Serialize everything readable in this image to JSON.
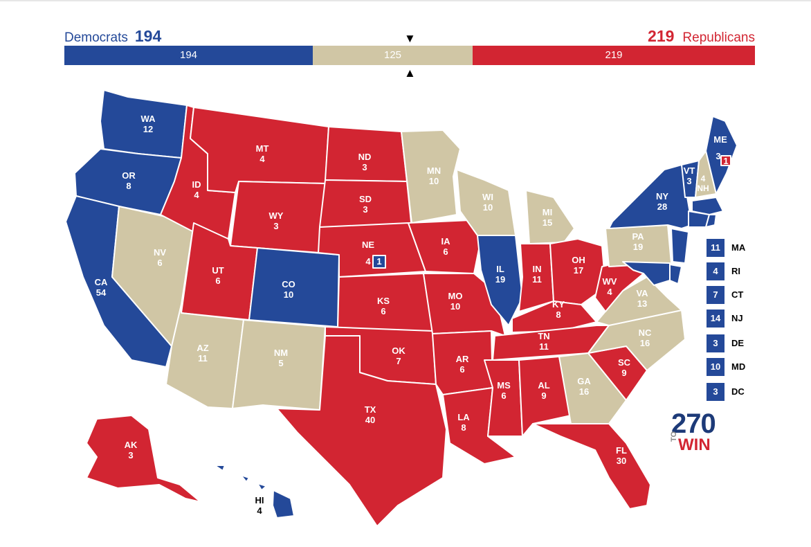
{
  "header": {
    "dem_name": "Democrats",
    "dem_total": "194",
    "rep_total": "219",
    "rep_name": "Republicans",
    "bar_dem": "194",
    "bar_tossup": "125",
    "bar_rep": "219",
    "arrow_top": "▼",
    "arrow_bottom": "▲"
  },
  "colors": {
    "dem": "#244999",
    "rep": "#d22532",
    "tossup": "#d0c6a5"
  },
  "states": {
    "WA": {
      "code": "WA",
      "ev": "12",
      "party": "dem"
    },
    "OR": {
      "code": "OR",
      "ev": "8",
      "party": "dem"
    },
    "CA": {
      "code": "CA",
      "ev": "54",
      "party": "dem"
    },
    "NV": {
      "code": "NV",
      "ev": "6",
      "party": "tossup"
    },
    "ID": {
      "code": "ID",
      "ev": "4",
      "party": "rep"
    },
    "MT": {
      "code": "MT",
      "ev": "4",
      "party": "rep"
    },
    "WY": {
      "code": "WY",
      "ev": "3",
      "party": "rep"
    },
    "UT": {
      "code": "UT",
      "ev": "6",
      "party": "rep"
    },
    "AZ": {
      "code": "AZ",
      "ev": "11",
      "party": "tossup"
    },
    "CO": {
      "code": "CO",
      "ev": "10",
      "party": "dem"
    },
    "NM": {
      "code": "NM",
      "ev": "5",
      "party": "tossup"
    },
    "ND": {
      "code": "ND",
      "ev": "3",
      "party": "rep"
    },
    "SD": {
      "code": "SD",
      "ev": "3",
      "party": "rep"
    },
    "NE": {
      "code": "NE",
      "ev": "4",
      "party": "rep",
      "split_ev": "1"
    },
    "KS": {
      "code": "KS",
      "ev": "6",
      "party": "rep"
    },
    "OK": {
      "code": "OK",
      "ev": "7",
      "party": "rep"
    },
    "TX": {
      "code": "TX",
      "ev": "40",
      "party": "rep"
    },
    "MN": {
      "code": "MN",
      "ev": "10",
      "party": "tossup"
    },
    "IA": {
      "code": "IA",
      "ev": "6",
      "party": "rep"
    },
    "MO": {
      "code": "MO",
      "ev": "10",
      "party": "rep"
    },
    "AR": {
      "code": "AR",
      "ev": "6",
      "party": "rep"
    },
    "LA": {
      "code": "LA",
      "ev": "8",
      "party": "rep"
    },
    "WI": {
      "code": "WI",
      "ev": "10",
      "party": "tossup"
    },
    "IL": {
      "code": "IL",
      "ev": "19",
      "party": "dem"
    },
    "MI": {
      "code": "MI",
      "ev": "15",
      "party": "tossup"
    },
    "IN": {
      "code": "IN",
      "ev": "11",
      "party": "rep"
    },
    "OH": {
      "code": "OH",
      "ev": "17",
      "party": "rep"
    },
    "KY": {
      "code": "KY",
      "ev": "8",
      "party": "rep"
    },
    "TN": {
      "code": "TN",
      "ev": "11",
      "party": "rep"
    },
    "MS": {
      "code": "MS",
      "ev": "6",
      "party": "rep"
    },
    "AL": {
      "code": "AL",
      "ev": "9",
      "party": "rep"
    },
    "GA": {
      "code": "GA",
      "ev": "16",
      "party": "tossup"
    },
    "FL": {
      "code": "FL",
      "ev": "30",
      "party": "rep"
    },
    "SC": {
      "code": "SC",
      "ev": "9",
      "party": "rep"
    },
    "NC": {
      "code": "NC",
      "ev": "16",
      "party": "tossup"
    },
    "VA": {
      "code": "VA",
      "ev": "13",
      "party": "tossup"
    },
    "WV": {
      "code": "WV",
      "ev": "4",
      "party": "rep"
    },
    "PA": {
      "code": "PA",
      "ev": "19",
      "party": "tossup"
    },
    "NY": {
      "code": "NY",
      "ev": "28",
      "party": "dem"
    },
    "VT": {
      "code": "VT",
      "ev": "3",
      "party": "dem"
    },
    "NH": {
      "code": "NH",
      "ev": "4",
      "party": "tossup"
    },
    "ME": {
      "code": "ME",
      "ev": "3",
      "party": "dem",
      "split_ev": "1"
    },
    "AK": {
      "code": "AK",
      "ev": "3",
      "party": "rep"
    },
    "HI": {
      "code": "HI",
      "ev": "4",
      "party": "dem"
    }
  },
  "small_states": [
    {
      "code": "MA",
      "ev": "11"
    },
    {
      "code": "RI",
      "ev": "4"
    },
    {
      "code": "CT",
      "ev": "7"
    },
    {
      "code": "NJ",
      "ev": "14"
    },
    {
      "code": "DE",
      "ev": "3"
    },
    {
      "code": "MD",
      "ev": "10"
    },
    {
      "code": "DC",
      "ev": "3"
    }
  ],
  "logo": {
    "number": "270",
    "to": "TO",
    "win": "WIN"
  }
}
